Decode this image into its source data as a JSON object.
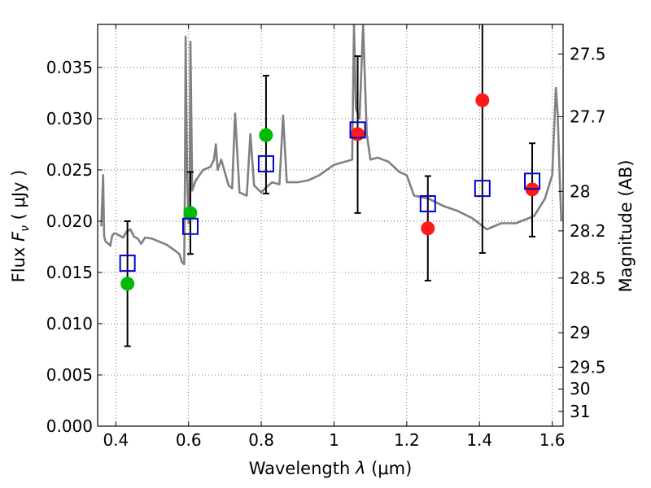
{
  "chart_data": {
    "type": "scatter",
    "title": "",
    "xlabel": "Wavelength  λ (μm)",
    "ylabel": "Flux  F_ν  ( μJy )",
    "ylabel_parts": {
      "prefix": "Flux  ",
      "symbol": "F",
      "subscript": "ν",
      "unit": "  ( μJy )"
    },
    "xlabel_parts": {
      "prefix": "Wavelength  ",
      "symbol": "λ",
      "unit": " (μm)"
    },
    "y2label": "Magnitude (AB)",
    "xlim": [
      0.35,
      1.63
    ],
    "ylim": [
      0.0,
      0.0392
    ],
    "x_ticks": [
      {
        "value": 0.4,
        "label": "0.4"
      },
      {
        "value": 0.6,
        "label": "0.6"
      },
      {
        "value": 0.8,
        "label": "0.8"
      },
      {
        "value": 1.0,
        "label": "1"
      },
      {
        "value": 1.2,
        "label": "1.2"
      },
      {
        "value": 1.4,
        "label": "1.4"
      },
      {
        "value": 1.6,
        "label": "1.6"
      }
    ],
    "y_ticks": [
      {
        "value": 0.0,
        "label": "0.000"
      },
      {
        "value": 0.005,
        "label": "0.005"
      },
      {
        "value": 0.01,
        "label": "0.010"
      },
      {
        "value": 0.015,
        "label": "0.015"
      },
      {
        "value": 0.02,
        "label": "0.020"
      },
      {
        "value": 0.025,
        "label": "0.025"
      },
      {
        "value": 0.03,
        "label": "0.030"
      },
      {
        "value": 0.035,
        "label": "0.035"
      }
    ],
    "y2_ticks": [
      {
        "value": 27.5,
        "label": "27.5"
      },
      {
        "value": 27.7,
        "label": "27.7"
      },
      {
        "value": 28.0,
        "label": "28"
      },
      {
        "value": 28.2,
        "label": "28.2"
      },
      {
        "value": 28.5,
        "label": "28.5"
      },
      {
        "value": 29.0,
        "label": "29"
      },
      {
        "value": 29.5,
        "label": "29.5"
      },
      {
        "value": 30.0,
        "label": "30"
      },
      {
        "value": 31.0,
        "label": "31"
      }
    ],
    "grid": true,
    "model_spectrum": {
      "color": "#808080",
      "x": [
        0.36,
        0.365,
        0.368,
        0.372,
        0.38,
        0.385,
        0.39,
        0.395,
        0.4,
        0.41,
        0.42,
        0.43,
        0.44,
        0.45,
        0.46,
        0.47,
        0.48,
        0.5,
        0.52,
        0.54,
        0.56,
        0.575,
        0.582,
        0.588,
        0.59,
        0.592,
        0.596,
        0.6,
        0.603,
        0.605,
        0.61,
        0.62,
        0.64,
        0.66,
        0.67,
        0.675,
        0.68,
        0.69,
        0.71,
        0.72,
        0.728,
        0.74,
        0.76,
        0.77,
        0.78,
        0.8,
        0.81,
        0.83,
        0.85,
        0.86,
        0.87,
        0.9,
        0.93,
        0.96,
        0.98,
        1.0,
        1.03,
        1.05,
        1.055,
        1.06,
        1.07,
        1.08,
        1.09,
        1.1,
        1.12,
        1.15,
        1.18,
        1.2,
        1.22,
        1.26,
        1.3,
        1.34,
        1.38,
        1.42,
        1.46,
        1.5,
        1.55,
        1.58,
        1.6,
        1.61,
        1.615,
        1.62,
        1.625
      ],
      "y": [
        0.0195,
        0.0245,
        0.0185,
        0.018,
        0.0178,
        0.0176,
        0.0186,
        0.0188,
        0.0188,
        0.0186,
        0.0184,
        0.019,
        0.0192,
        0.0185,
        0.0183,
        0.0178,
        0.0184,
        0.0183,
        0.018,
        0.0177,
        0.0172,
        0.0168,
        0.016,
        0.0158,
        0.024,
        0.038,
        0.025,
        0.0198,
        0.021,
        0.0375,
        0.023,
        0.024,
        0.025,
        0.0253,
        0.026,
        0.0275,
        0.025,
        0.026,
        0.0235,
        0.0232,
        0.0305,
        0.0228,
        0.0225,
        0.0285,
        0.0235,
        0.0228,
        0.0232,
        0.0238,
        0.0236,
        0.0303,
        0.0238,
        0.0238,
        0.024,
        0.0245,
        0.025,
        0.0255,
        0.0258,
        0.026,
        0.0392,
        0.031,
        0.03,
        0.0392,
        0.0285,
        0.026,
        0.0262,
        0.0258,
        0.0248,
        0.0245,
        0.0225,
        0.0222,
        0.0215,
        0.021,
        0.0203,
        0.0192,
        0.0198,
        0.0198,
        0.0205,
        0.0222,
        0.0245,
        0.033,
        0.0305,
        0.025,
        0.02
      ]
    },
    "green_points": {
      "color": "#00bb00",
      "x": [
        0.432,
        0.605,
        0.813
      ],
      "y": [
        0.0139,
        0.0208,
        0.0284
      ]
    },
    "red_points": {
      "color": "#ff1a1a",
      "x": [
        1.065,
        1.258,
        1.408,
        1.545
      ],
      "y": [
        0.0285,
        0.0193,
        0.0318,
        0.0231
      ]
    },
    "blue_squares": {
      "color": "#0000cc",
      "x": [
        0.432,
        0.605,
        0.813,
        1.065,
        1.258,
        1.408,
        1.545
      ],
      "y": [
        0.0159,
        0.0195,
        0.0256,
        0.0289,
        0.0217,
        0.0232,
        0.0239
      ]
    },
    "error_bars": [
      {
        "x": 0.432,
        "low": 0.0078,
        "high": 0.02
      },
      {
        "x": 0.605,
        "low": 0.0168,
        "high": 0.0248
      },
      {
        "x": 0.813,
        "low": 0.0227,
        "high": 0.0342
      },
      {
        "x": 1.065,
        "low": 0.0208,
        "high": 0.0361
      },
      {
        "x": 1.258,
        "low": 0.0142,
        "high": 0.0244
      },
      {
        "x": 1.408,
        "low": 0.0169,
        "high": 0.0392
      },
      {
        "x": 1.545,
        "low": 0.0185,
        "high": 0.0276
      }
    ]
  }
}
